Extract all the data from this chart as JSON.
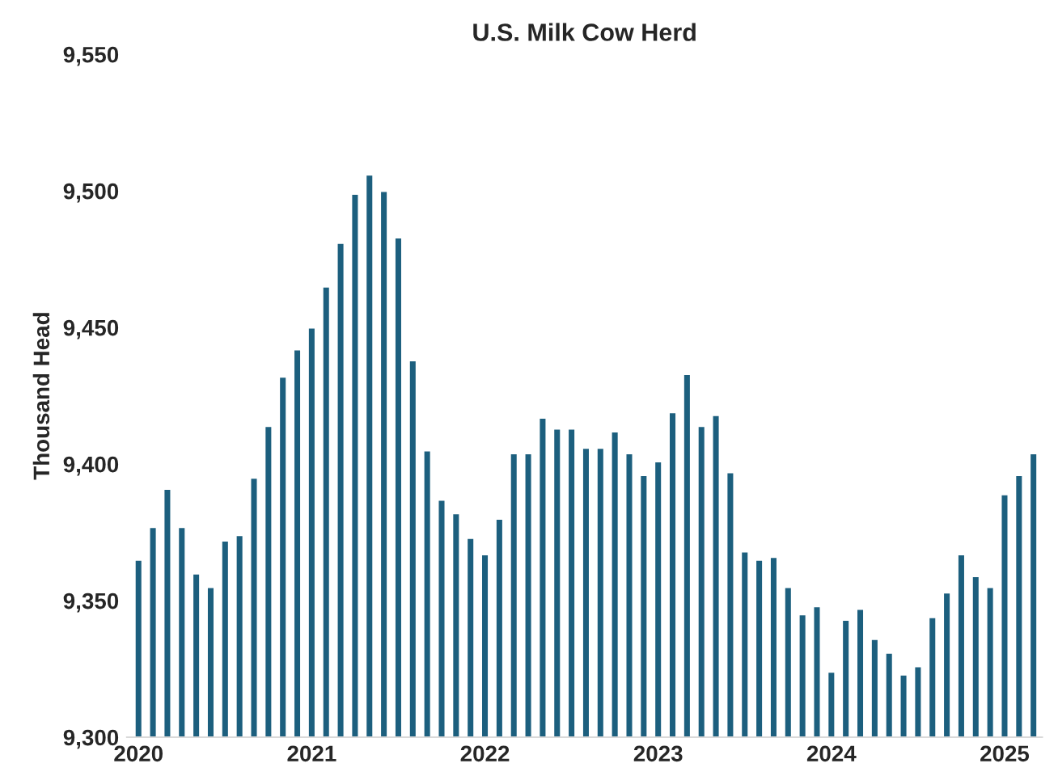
{
  "chart_data": {
    "type": "bar",
    "title": "U.S. Milk Cow Herd",
    "ylabel": "Thousand Head",
    "categories": [
      "2020",
      null,
      null,
      null,
      null,
      null,
      null,
      null,
      null,
      null,
      null,
      null,
      "2021",
      null,
      null,
      null,
      null,
      null,
      null,
      null,
      null,
      null,
      null,
      null,
      "2022",
      null,
      null,
      null,
      null,
      null,
      null,
      null,
      null,
      null,
      null,
      null,
      "2023",
      null,
      null,
      null,
      null,
      null,
      null,
      null,
      null,
      null,
      null,
      null,
      "2024",
      null,
      null,
      null,
      null,
      null,
      null,
      null,
      null,
      null,
      null,
      null,
      "2025",
      null,
      null
    ],
    "values": [
      9365,
      9377,
      9391,
      9377,
      9360,
      9355,
      9372,
      9374,
      9395,
      9414,
      9432,
      9442,
      9450,
      9465,
      9481,
      9499,
      9506,
      9500,
      9483,
      9438,
      9405,
      9387,
      9382,
      9373,
      9367,
      9380,
      9404,
      9404,
      9417,
      9413,
      9413,
      9406,
      9406,
      9412,
      9404,
      9396,
      9401,
      9419,
      9433,
      9414,
      9418,
      9397,
      9368,
      9365,
      9366,
      9355,
      9345,
      9348,
      9324,
      9343,
      9347,
      9336,
      9331,
      9323,
      9326,
      9344,
      9353,
      9367,
      9359,
      9355,
      9389,
      9396,
      9404
    ],
    "color": "#1c5f7e",
    "ylim": [
      9300,
      9550
    ],
    "yticks": [
      {
        "value": 9300,
        "label": "9,300"
      },
      {
        "value": 9350,
        "label": "9,350"
      },
      {
        "value": 9400,
        "label": "9,400"
      },
      {
        "value": 9450,
        "label": "9,450"
      },
      {
        "value": 9500,
        "label": "9,500"
      },
      {
        "value": 9550,
        "label": "9,550"
      }
    ],
    "grid": false,
    "legend": false
  }
}
